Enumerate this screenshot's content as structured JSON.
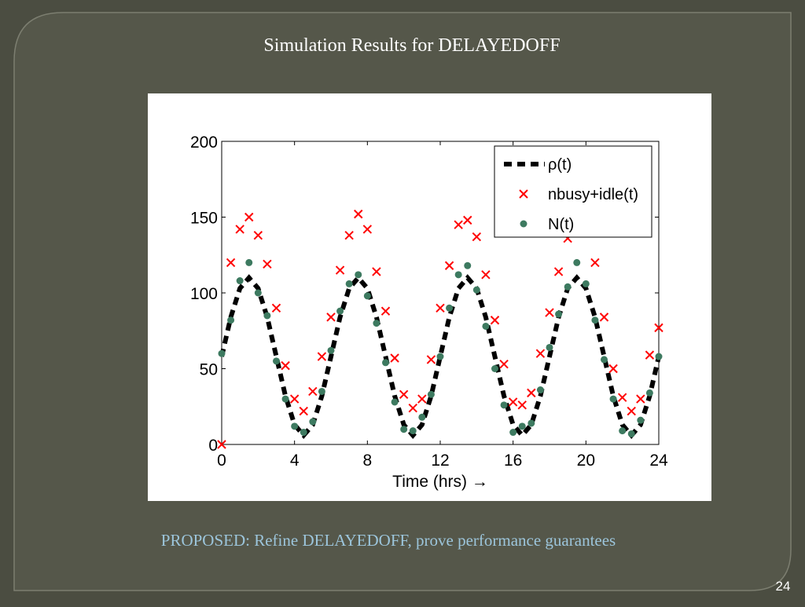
{
  "slide": {
    "title": "Simulation Results for DELAYEDOFF",
    "footer": "PROPOSED: Refine DELAYEDOFF, prove performance guarantees",
    "page_number": "24"
  },
  "chart_data": {
    "type": "line",
    "x_label": "Time (hrs) →",
    "xlim": [
      0,
      24
    ],
    "xticks": [
      0,
      4,
      8,
      12,
      16,
      20,
      24
    ],
    "ylim": [
      0,
      200
    ],
    "yticks": [
      0,
      50,
      100,
      150,
      200
    ],
    "legend_position": "upper right",
    "x": [
      0,
      0.5,
      1,
      1.5,
      2,
      2.5,
      3,
      3.5,
      4,
      4.5,
      5,
      5.5,
      6,
      6.5,
      7,
      7.5,
      8,
      8.5,
      9,
      9.5,
      10,
      10.5,
      11,
      11.5,
      12,
      12.5,
      13,
      13.5,
      14,
      14.5,
      15,
      15.5,
      16,
      16.5,
      17,
      17.5,
      18,
      18.5,
      19,
      19.5,
      20,
      20.5,
      21,
      21.5,
      22,
      22.5,
      23,
      23.5,
      24
    ],
    "series": [
      {
        "name": "ρ(t)",
        "color": "#000000",
        "style": "dashed",
        "values": [
          58,
          84,
          103,
          110,
          103,
          84,
          58,
          32,
          13,
          6,
          13,
          32,
          58,
          84,
          103,
          110,
          103,
          84,
          58,
          32,
          13,
          6,
          13,
          32,
          58,
          84,
          103,
          110,
          103,
          84,
          58,
          32,
          13,
          6,
          13,
          32,
          58,
          84,
          103,
          110,
          103,
          84,
          58,
          32,
          13,
          6,
          13,
          32,
          58
        ]
      },
      {
        "name": "nbusy+idle(t)",
        "color": "#ff0000",
        "style": "cross",
        "values": [
          0,
          120,
          142,
          150,
          138,
          119,
          90,
          52,
          30,
          22,
          35,
          58,
          84,
          115,
          138,
          152,
          142,
          114,
          88,
          57,
          33,
          24,
          30,
          56,
          90,
          118,
          145,
          148,
          137,
          112,
          82,
          53,
          28,
          26,
          34,
          60,
          87,
          114,
          136,
          140,
          142,
          120,
          84,
          50,
          31,
          22,
          30,
          59,
          77
        ]
      },
      {
        "name": "N(t)",
        "color": "#3d7a60",
        "style": "dot",
        "values": [
          60,
          82,
          108,
          120,
          100,
          85,
          55,
          30,
          12,
          8,
          15,
          35,
          62,
          88,
          106,
          112,
          98,
          80,
          54,
          28,
          10,
          9,
          18,
          33,
          58,
          90,
          112,
          118,
          102,
          78,
          50,
          26,
          8,
          12,
          14,
          36,
          64,
          86,
          104,
          120,
          106,
          82,
          56,
          30,
          9,
          7,
          16,
          34,
          58
        ]
      }
    ]
  }
}
